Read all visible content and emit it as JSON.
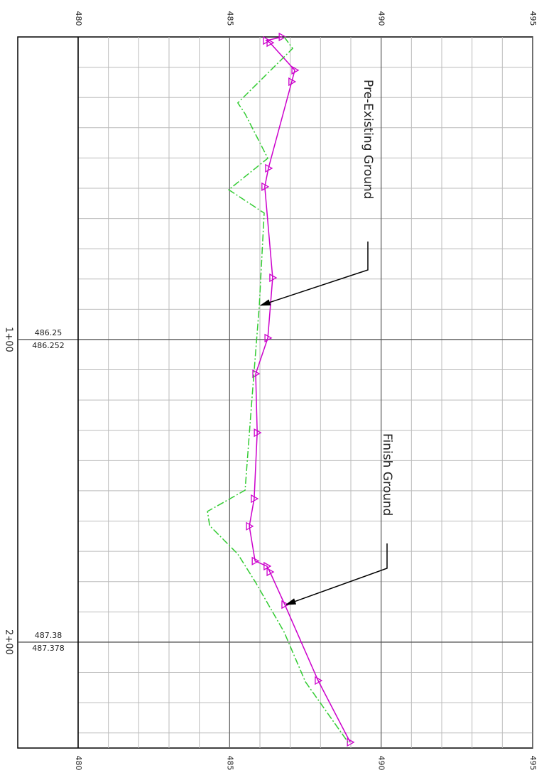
{
  "chart_data": {
    "type": "line",
    "xlim": [
      0,
      235
    ],
    "xticks": [
      {
        "value": 100,
        "label": "1+00"
      },
      {
        "value": 200,
        "label": "2+00"
      }
    ],
    "x_minor_ticks": [
      10,
      20,
      30,
      40,
      50,
      60,
      70,
      80,
      90,
      110,
      120,
      130,
      140,
      150,
      160,
      170,
      180,
      190,
      210,
      220,
      230
    ],
    "ylim": [
      480,
      495
    ],
    "yticks": [
      480,
      485,
      490,
      495
    ],
    "y_minor_ticks": [
      481,
      482,
      483,
      484,
      486,
      487,
      488,
      489,
      491,
      492,
      493,
      494
    ],
    "grid": true,
    "series": [
      {
        "name": "Finish Ground",
        "color": "#cc00cc",
        "x": [
          0,
          1.2,
          1.9,
          11.0,
          14.8,
          43.4,
          49.5,
          79.6,
          99.5,
          111.3,
          130.8,
          152.6,
          161.7,
          173.2,
          174.9,
          176.8,
          187.6,
          212.7,
          233.1
        ],
        "values": [
          486.73,
          486.21,
          486.33,
          487.15,
          487.05,
          486.28,
          486.16,
          486.42,
          486.26,
          485.86,
          485.91,
          485.81,
          485.65,
          485.84,
          486.23,
          486.33,
          486.82,
          487.92,
          488.98
        ],
        "annotation_at": 187.6
      },
      {
        "name": "Pre-Existing Ground",
        "color": "#33cc33",
        "x": [
          0,
          3.8,
          21.8,
          25.4,
          40.1,
          50.5,
          58.2,
          88.7,
          119.2,
          149.8,
          156.8,
          161.5,
          170.9,
          180.3,
          196.7,
          213.1,
          233.1
        ],
        "values": [
          486.8,
          487.08,
          485.27,
          485.51,
          486.26,
          484.97,
          486.14,
          485.98,
          485.74,
          485.51,
          484.27,
          484.34,
          485.27,
          485.86,
          486.8,
          487.5,
          488.91
        ],
        "annotation_at": 88.7
      }
    ],
    "station_labels": [
      {
        "x": 100,
        "labels": [
          "486.25",
          "486.252"
        ]
      },
      {
        "x": 200,
        "labels": [
          "487.38",
          "487.378"
        ]
      }
    ]
  }
}
